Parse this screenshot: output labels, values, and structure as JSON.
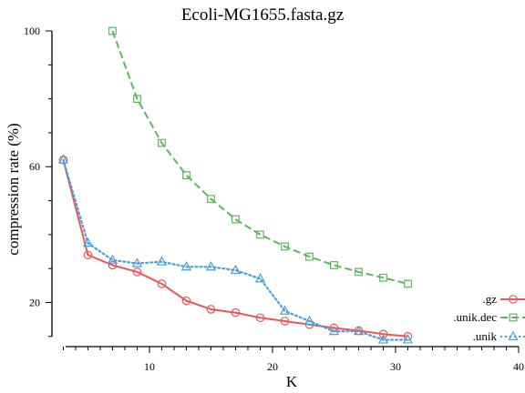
{
  "chart_data": {
    "type": "line",
    "title": "Ecoli-MG1655.fasta.gz",
    "xlabel": "K",
    "ylabel": "compression rate (%)",
    "xlim": [
      2.3,
      40
    ],
    "ylim": [
      7,
      100
    ],
    "xticks": [
      10,
      20,
      30,
      40
    ],
    "yticks": [
      20,
      60,
      100
    ],
    "grid": false,
    "legend_position": "bottom-right",
    "series": [
      {
        "name": ".gz",
        "color": "#e8585a",
        "linestyle": "solid",
        "marker": "circle",
        "x": [
          3,
          5,
          7,
          9,
          11,
          13,
          15,
          17,
          19,
          21,
          23,
          25,
          27,
          29,
          31
        ],
        "y": [
          62,
          34,
          31,
          29,
          25.5,
          20.5,
          18,
          17,
          15.5,
          14.5,
          13.5,
          12.5,
          11.7,
          10.7,
          10
        ]
      },
      {
        "name": ".unik.dec",
        "color": "#5cb85c",
        "linestyle": "dashed",
        "marker": "square",
        "x": [
          7,
          9,
          11,
          13,
          15,
          17,
          19,
          21,
          23,
          25,
          27,
          29,
          31
        ],
        "y": [
          100,
          80,
          67,
          57.5,
          50.5,
          44.5,
          40,
          36.5,
          33.5,
          31,
          29,
          27.3,
          25.5
        ]
      },
      {
        "name": ".unik",
        "color": "#4a9fd8",
        "linestyle": "dotted",
        "marker": "triangle",
        "x": [
          3,
          5,
          7,
          9,
          11,
          13,
          15,
          17,
          19,
          21,
          23,
          25,
          27,
          29,
          31
        ],
        "y": [
          62,
          37.5,
          32.5,
          31.5,
          32,
          30.5,
          30.5,
          29.5,
          27,
          17.5,
          14.5,
          11.5,
          11.5,
          9,
          9
        ]
      }
    ]
  }
}
